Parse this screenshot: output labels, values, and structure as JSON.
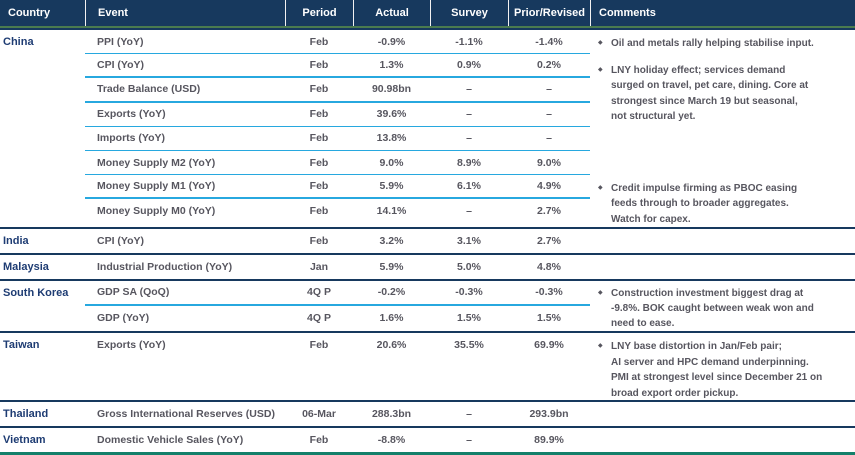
{
  "icons": {
    "bullet": "◆"
  },
  "colors": {
    "header_bg": "#17395E",
    "row_line_cyan": "#27A8DF",
    "country_line_navy": "#17395E",
    "top_border_green": "#4A7B4F",
    "bottom_border_green": "#14806B",
    "country_text": "#1E3C73",
    "body_text": "#57565F"
  },
  "table": {
    "columns": [
      "Country",
      "Event",
      "Period",
      "Actual",
      "Survey",
      "Prior/Revised",
      "Comments"
    ],
    "groups": [
      {
        "country": "China",
        "rows": [
          {
            "event": "PPI (YoY)",
            "period": "Feb",
            "actual": "-0.9%",
            "survey": "-1.1%",
            "prior": "-1.4%"
          },
          {
            "event": "CPI (YoY)",
            "period": "Feb",
            "actual": "1.3%",
            "survey": "0.9%",
            "prior": "0.2%"
          },
          {
            "event": "Trade Balance (USD)",
            "period": "Feb",
            "actual": "90.98bn",
            "survey": "–",
            "prior": "–"
          },
          {
            "event": "Exports (YoY)",
            "period": "Feb",
            "actual": "39.6%",
            "survey": "–",
            "prior": "–"
          },
          {
            "event": "Imports (YoY)",
            "period": "Feb",
            "actual": "13.8%",
            "survey": "–",
            "prior": "–"
          },
          {
            "event": "Money Supply M2 (YoY)",
            "period": "Feb",
            "actual": "9.0%",
            "survey": "8.9%",
            "prior": "9.0%"
          },
          {
            "event": "Money Supply M1 (YoY)",
            "period": "Feb",
            "actual": "5.9%",
            "survey": "6.1%",
            "prior": "4.9%"
          },
          {
            "event": "Money Supply M0 (YoY)",
            "period": "Feb",
            "actual": "14.1%",
            "survey": "–",
            "prior": "2.7%"
          }
        ],
        "comments": [
          "Oil and metals rally helping stabilise input.",
          "LNY holiday effect; services demand\nsurged on travel, pet care, dining. Core at\nstrongest since March 19 but seasonal,\nnot structural yet.",
          "Credit impulse firming as PBOC easing\nfeeds through to broader aggregates.\nWatch for capex."
        ]
      },
      {
        "country": "India",
        "rows": [
          {
            "event": "CPI (YoY)",
            "period": "Feb",
            "actual": "3.2%",
            "survey": "3.1%",
            "prior": "2.7%"
          }
        ],
        "comments": []
      },
      {
        "country": "Malaysia",
        "rows": [
          {
            "event": "Industrial Production (YoY)",
            "period": "Jan",
            "actual": "5.9%",
            "survey": "5.0%",
            "prior": "4.8%"
          }
        ],
        "comments": []
      },
      {
        "country": "South Korea",
        "rows": [
          {
            "event": "GDP SA (QoQ)",
            "period": "4Q P",
            "actual": "-0.2%",
            "survey": "-0.3%",
            "prior": "-0.3%"
          },
          {
            "event": "GDP (YoY)",
            "period": "4Q P",
            "actual": "1.6%",
            "survey": "1.5%",
            "prior": "1.5%"
          }
        ],
        "comments": [
          "Construction investment biggest drag at\n-9.8%. BOK caught between weak won and\nneed to ease."
        ]
      },
      {
        "country": "Taiwan",
        "rows": [
          {
            "event": "Exports (YoY)",
            "period": "Feb",
            "actual": "20.6%",
            "survey": "35.5%",
            "prior": "69.9%"
          }
        ],
        "comments": [
          "LNY base distortion in Jan/Feb pair;\nAI server and HPC demand underpinning.\nPMI at strongest level since December 21 on\nbroad export order pickup."
        ]
      },
      {
        "country": "Thailand",
        "rows": [
          {
            "event": "Gross International Reserves (USD)",
            "period": "06-Mar",
            "actual": "288.3bn",
            "survey": "–",
            "prior": "293.9bn"
          }
        ],
        "comments": []
      },
      {
        "country": "Vietnam",
        "rows": [
          {
            "event": "Domestic Vehicle Sales (YoY)",
            "period": "Feb",
            "actual": "-8.8%",
            "survey": "–",
            "prior": "89.9%"
          }
        ],
        "comments": []
      }
    ]
  }
}
